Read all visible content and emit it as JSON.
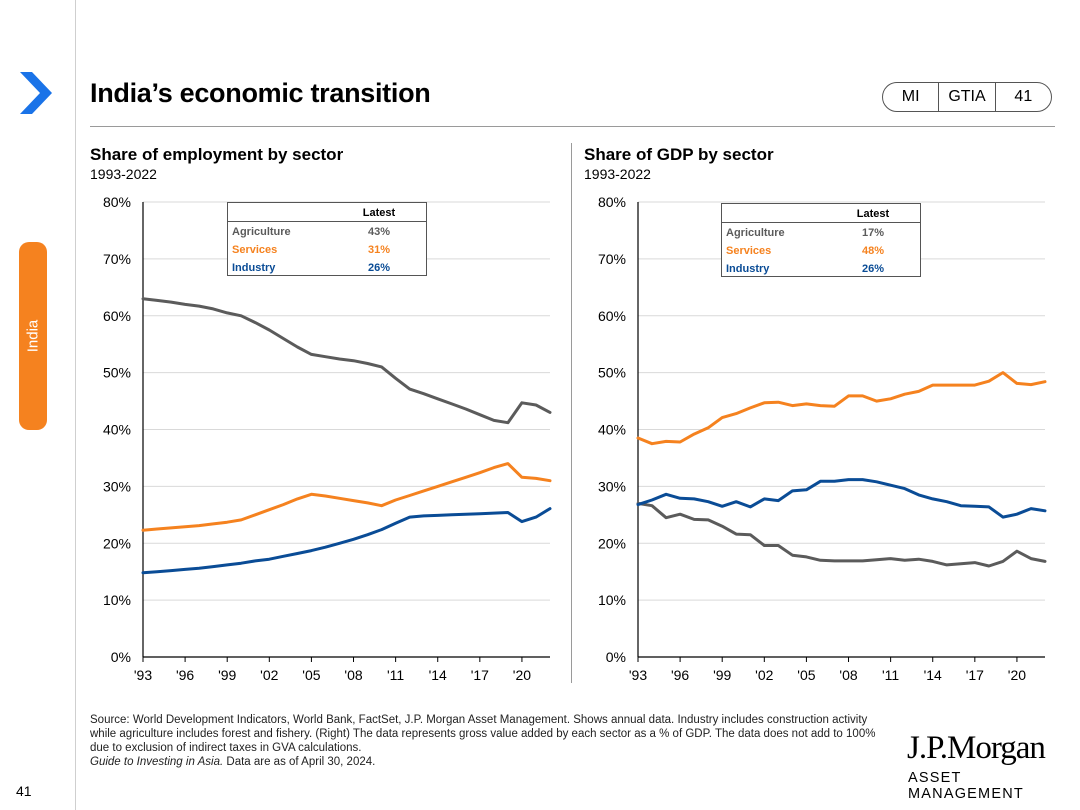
{
  "title": "India’s economic transition",
  "badge": {
    "mi": "MI",
    "gtia": "GTIA",
    "num": "41"
  },
  "side_tab": "India",
  "page_number": "41",
  "colors": {
    "agriculture": "#5b5b5b",
    "services": "#f5821f",
    "industry": "#0a4c96",
    "accent": "#1a73e8"
  },
  "legend_header": "Latest",
  "source_text": "Source: World Development Indicators, World Bank, FactSet, J.P. Morgan Asset Management. Shows annual data. Industry includes construction activity while agriculture includes forest and fishery. (Right) The data represents gross value added by each sector as a % of GDP. The data does not add to 100% due to exclusion of indirect taxes in GVA calculations.",
  "source_italic": "Guide to Investing in Asia.",
  "source_date": " Data are as of April 30, 2024.",
  "logo": {
    "main": "J.P.Morgan",
    "sub": "ASSET MANAGEMENT"
  },
  "chart_data": [
    {
      "type": "line",
      "title": "Share of employment by sector",
      "subtitle": "1993-2022",
      "x_start": 1993,
      "ylim": [
        0,
        80
      ],
      "yticks": [
        "0%",
        "10%",
        "20%",
        "30%",
        "40%",
        "50%",
        "60%",
        "70%",
        "80%"
      ],
      "xticks": [
        "'93",
        "'96",
        "'99",
        "'02",
        "'05",
        "'08",
        "'11",
        "'14",
        "'17",
        "'20"
      ],
      "legend": [
        {
          "name": "Agriculture",
          "latest": "43%",
          "key": "agriculture"
        },
        {
          "name": "Services",
          "latest": "31%",
          "key": "services"
        },
        {
          "name": "Industry",
          "latest": "26%",
          "key": "industry"
        }
      ],
      "series": [
        {
          "name": "Agriculture",
          "key": "agriculture",
          "values": [
            63.0,
            62.7,
            62.4,
            62.0,
            61.7,
            61.2,
            60.5,
            60.0,
            58.8,
            57.5,
            56.0,
            54.5,
            53.2,
            52.8,
            52.4,
            52.1,
            51.6,
            51.0,
            49.0,
            47.1,
            46.3,
            45.4,
            44.5,
            43.6,
            42.6,
            41.6,
            41.2,
            44.7,
            44.3,
            43.0
          ]
        },
        {
          "name": "Services",
          "key": "services",
          "values": [
            22.3,
            22.5,
            22.7,
            22.9,
            23.1,
            23.4,
            23.7,
            24.1,
            25.0,
            25.9,
            26.8,
            27.8,
            28.6,
            28.3,
            27.9,
            27.5,
            27.1,
            26.6,
            27.6,
            28.4,
            29.2,
            30.0,
            30.8,
            31.6,
            32.4,
            33.3,
            34.0,
            31.6,
            31.4,
            31.0
          ]
        },
        {
          "name": "Industry",
          "key": "industry",
          "values": [
            14.8,
            15.0,
            15.2,
            15.4,
            15.6,
            15.9,
            16.2,
            16.5,
            16.9,
            17.2,
            17.7,
            18.2,
            18.7,
            19.3,
            20.0,
            20.7,
            21.5,
            22.4,
            23.5,
            24.6,
            24.8,
            24.9,
            25.0,
            25.1,
            25.2,
            25.3,
            25.4,
            23.8,
            24.6,
            26.1
          ]
        }
      ]
    },
    {
      "type": "line",
      "title": "Share of GDP by sector",
      "subtitle": "1993-2022",
      "x_start": 1993,
      "ylim": [
        0,
        80
      ],
      "yticks": [
        "0%",
        "10%",
        "20%",
        "30%",
        "40%",
        "50%",
        "60%",
        "70%",
        "80%"
      ],
      "xticks": [
        "'93",
        "'96",
        "'99",
        "'02",
        "'05",
        "'08",
        "'11",
        "'14",
        "'17",
        "'20"
      ],
      "legend": [
        {
          "name": "Agriculture",
          "latest": "17%",
          "key": "agriculture"
        },
        {
          "name": "Services",
          "latest": "48%",
          "key": "services"
        },
        {
          "name": "Industry",
          "latest": "26%",
          "key": "industry"
        }
      ],
      "series": [
        {
          "name": "Agriculture",
          "key": "agriculture",
          "values": [
            27.0,
            26.6,
            24.5,
            25.1,
            24.2,
            24.1,
            23.0,
            21.6,
            21.5,
            19.6,
            19.6,
            17.9,
            17.6,
            17.0,
            16.9,
            16.9,
            16.9,
            17.1,
            17.3,
            17.0,
            17.2,
            16.8,
            16.2,
            16.4,
            16.6,
            16.0,
            16.8,
            18.6,
            17.3,
            16.8
          ]
        },
        {
          "name": "Services",
          "key": "services",
          "values": [
            38.5,
            37.5,
            37.9,
            37.8,
            39.2,
            40.3,
            42.1,
            42.8,
            43.8,
            44.7,
            44.8,
            44.2,
            44.5,
            44.2,
            44.1,
            45.9,
            45.9,
            45.0,
            45.4,
            46.2,
            46.7,
            47.8,
            47.8,
            47.8,
            47.8,
            48.5,
            50.0,
            48.1,
            47.9,
            48.4
          ]
        },
        {
          "name": "Industry",
          "key": "industry",
          "values": [
            26.8,
            27.6,
            28.6,
            27.9,
            27.8,
            27.3,
            26.5,
            27.3,
            26.4,
            27.8,
            27.5,
            29.2,
            29.4,
            30.9,
            30.9,
            31.2,
            31.2,
            30.8,
            30.2,
            29.6,
            28.5,
            27.8,
            27.3,
            26.6,
            26.5,
            26.4,
            24.6,
            25.1,
            26.1,
            25.7
          ]
        }
      ]
    }
  ]
}
